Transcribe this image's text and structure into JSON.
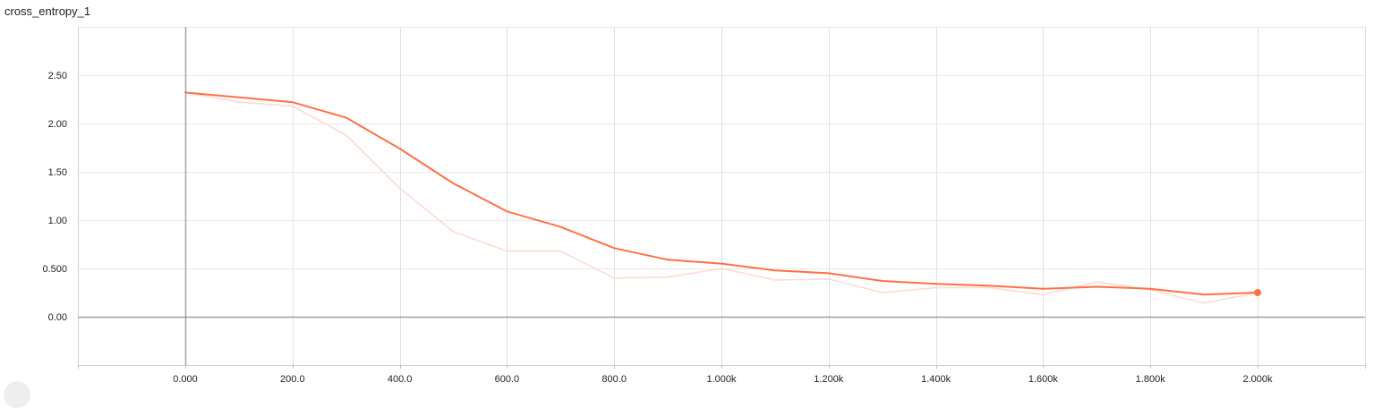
{
  "chart_data": {
    "type": "line",
    "title": "cross_entropy_1",
    "xlabel": "",
    "ylabel": "",
    "xlim": [
      -200,
      2200
    ],
    "ylim": [
      -0.5,
      3.0
    ],
    "x_ticks": [
      0,
      200,
      400,
      600,
      800,
      1000,
      1200,
      1400,
      1600,
      1800,
      2000
    ],
    "x_tick_labels": [
      "0.000",
      "200.0",
      "400.0",
      "600.0",
      "800.0",
      "1.000k",
      "1.200k",
      "1.400k",
      "1.600k",
      "1.800k",
      "2.000k"
    ],
    "y_ticks": [
      0,
      0.5,
      1.0,
      1.5,
      2.0,
      2.5
    ],
    "y_tick_labels": [
      "0.00",
      "0.500",
      "1.00",
      "1.50",
      "2.00",
      "2.50"
    ],
    "grid": true,
    "series": [
      {
        "role": "raw",
        "color": "#fddacf",
        "x": [
          0,
          100,
          200,
          300,
          400,
          500,
          600,
          700,
          800,
          900,
          1000,
          1100,
          1200,
          1300,
          1400,
          1500,
          1600,
          1700,
          1800,
          1900,
          2000
        ],
        "y": [
          2.32,
          2.22,
          2.18,
          1.88,
          1.33,
          0.88,
          0.68,
          0.68,
          0.4,
          0.41,
          0.5,
          0.38,
          0.39,
          0.25,
          0.3,
          0.3,
          0.23,
          0.36,
          0.28,
          0.14,
          0.25
        ]
      },
      {
        "role": "smoothed",
        "color": "#ff7043",
        "x": [
          0,
          100,
          200,
          300,
          400,
          500,
          600,
          700,
          800,
          900,
          1000,
          1100,
          1200,
          1300,
          1400,
          1500,
          1600,
          1700,
          1800,
          1900,
          2000
        ],
        "y": [
          2.32,
          2.27,
          2.22,
          2.06,
          1.74,
          1.38,
          1.09,
          0.93,
          0.71,
          0.59,
          0.55,
          0.48,
          0.45,
          0.37,
          0.34,
          0.32,
          0.29,
          0.31,
          0.29,
          0.23,
          0.25
        ]
      }
    ]
  }
}
